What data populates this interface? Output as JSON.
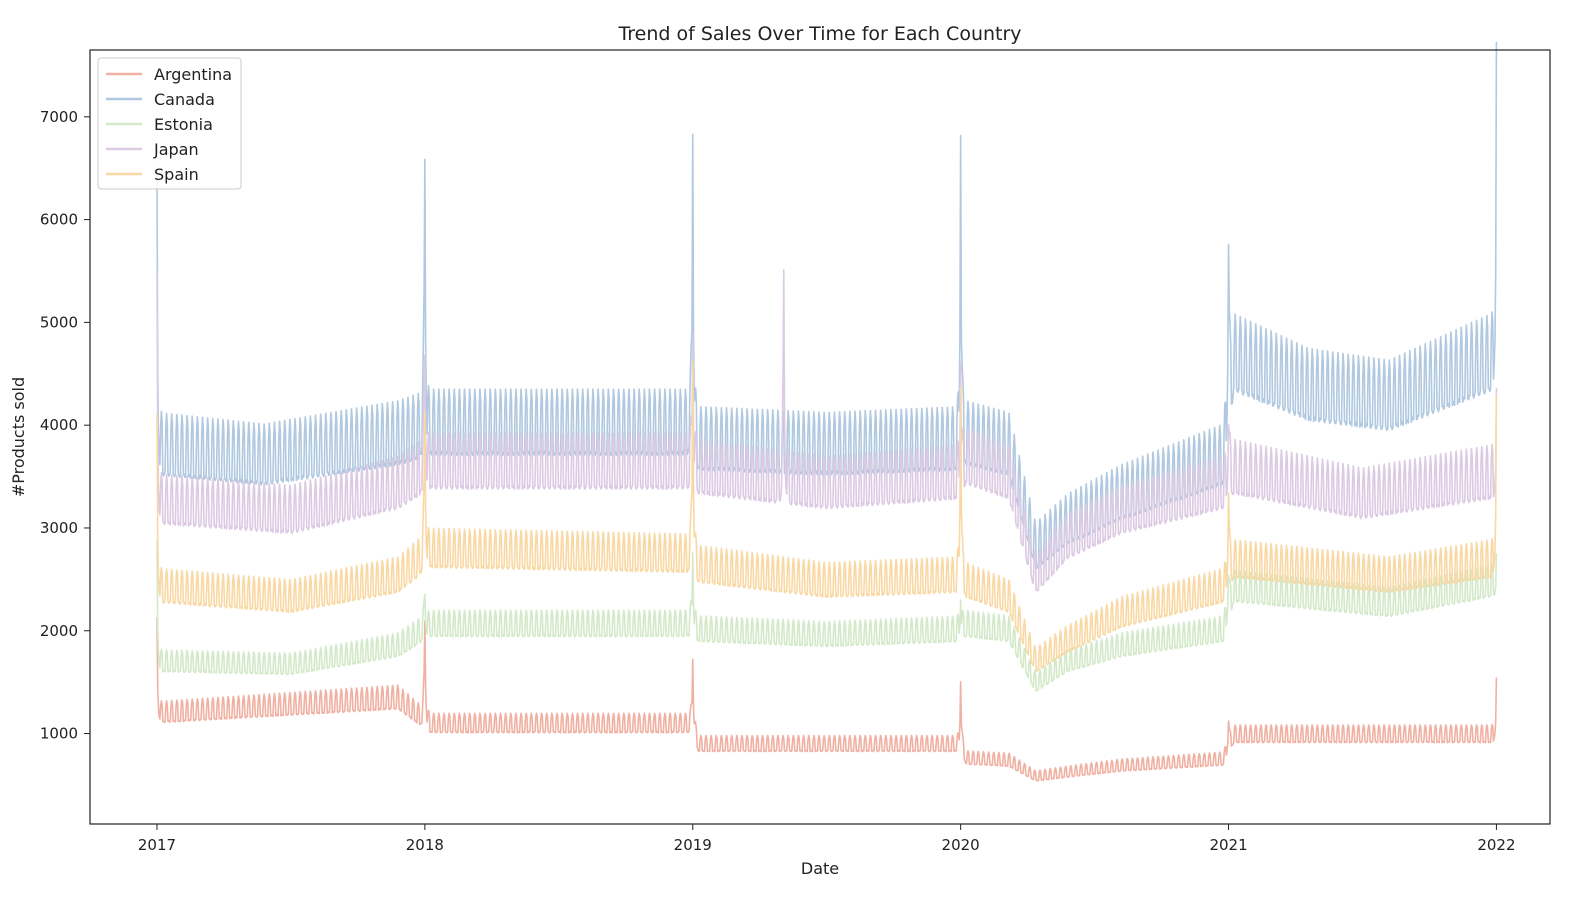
{
  "chart_data": {
    "type": "line",
    "title": "Trend of Sales Over Time for Each Country",
    "xlabel": "Date",
    "ylabel": "#Products sold",
    "xlim": [
      2016.75,
      2022.2
    ],
    "ylim": [
      120,
      7650
    ],
    "x_ticks": [
      2017,
      2018,
      2019,
      2020,
      2021,
      2022
    ],
    "x_tick_labels": [
      "2017",
      "2018",
      "2019",
      "2020",
      "2021",
      "2022"
    ],
    "y_ticks": [
      1000,
      2000,
      3000,
      4000,
      5000,
      6000,
      7000
    ],
    "y_tick_labels": [
      "1000",
      "2000",
      "3000",
      "4000",
      "5000",
      "6000",
      "7000"
    ],
    "grid": false,
    "legend_position": "top-left",
    "series": [
      {
        "name": "Argentina",
        "color": "#f0b1a3",
        "profile": [
          [
            2017.0,
            1150
          ],
          [
            2017.9,
            1290
          ],
          [
            2018.02,
            1050
          ],
          [
            2019.0,
            1050
          ],
          [
            2019.02,
            860
          ],
          [
            2020.0,
            860
          ],
          [
            2020.02,
            730
          ],
          [
            2020.18,
            710
          ],
          [
            2020.28,
            560
          ],
          [
            2020.4,
            600
          ],
          [
            2020.6,
            660
          ],
          [
            2020.98,
            720
          ],
          [
            2021.02,
            950
          ],
          [
            2021.98,
            950
          ]
        ],
        "amplitude": 0.14,
        "spikes": [
          [
            2017.0,
            2000
          ],
          [
            2018.0,
            2140
          ],
          [
            2019.0,
            1760
          ],
          [
            2020.0,
            1530
          ],
          [
            2021.0,
            1150
          ],
          [
            2022.0,
            1460
          ]
        ]
      },
      {
        "name": "Canada",
        "color": "#b0c8e0",
        "profile": [
          [
            2017.0,
            3650
          ],
          [
            2017.4,
            3550
          ],
          [
            2017.9,
            3750
          ],
          [
            2018.02,
            3850
          ],
          [
            2019.0,
            3850
          ],
          [
            2019.02,
            3700
          ],
          [
            2019.5,
            3650
          ],
          [
            2020.0,
            3700
          ],
          [
            2020.02,
            3750
          ],
          [
            2020.18,
            3650
          ],
          [
            2020.28,
            2700
          ],
          [
            2020.4,
            2950
          ],
          [
            2020.6,
            3200
          ],
          [
            2020.98,
            3550
          ],
          [
            2021.02,
            4500
          ],
          [
            2021.3,
            4200
          ],
          [
            2021.6,
            4100
          ],
          [
            2021.98,
            4500
          ]
        ],
        "amplitude": 0.13,
        "spikes": [
          [
            2017.0,
            6140
          ],
          [
            2018.0,
            6700
          ],
          [
            2019.0,
            6970
          ],
          [
            2020.0,
            6950
          ],
          [
            2021.0,
            5870
          ],
          [
            2022.0,
            7350
          ]
        ]
      },
      {
        "name": "Estonia",
        "color": "#d3e9c9",
        "profile": [
          [
            2017.0,
            1650
          ],
          [
            2017.5,
            1620
          ],
          [
            2017.9,
            1800
          ],
          [
            2018.02,
            2000
          ],
          [
            2019.0,
            2000
          ],
          [
            2019.02,
            1950
          ],
          [
            2019.5,
            1900
          ],
          [
            2020.0,
            1950
          ],
          [
            2020.02,
            2000
          ],
          [
            2020.18,
            1950
          ],
          [
            2020.28,
            1450
          ],
          [
            2020.4,
            1650
          ],
          [
            2020.6,
            1800
          ],
          [
            2020.98,
            1950
          ],
          [
            2021.02,
            2350
          ],
          [
            2021.6,
            2200
          ],
          [
            2021.98,
            2400
          ]
        ],
        "amplitude": 0.1,
        "spikes": [
          [
            2017.0,
            2750
          ],
          [
            2018.0,
            2400
          ],
          [
            2019.0,
            2800
          ],
          [
            2020.0,
            2350
          ],
          [
            2021.0,
            2600
          ],
          [
            2022.0,
            2600
          ]
        ]
      },
      {
        "name": "Japan",
        "color": "#dccae3",
        "profile": [
          [
            2017.0,
            3150
          ],
          [
            2017.5,
            3050
          ],
          [
            2017.9,
            3300
          ],
          [
            2018.02,
            3500
          ],
          [
            2019.0,
            3500
          ],
          [
            2019.02,
            3450
          ],
          [
            2019.5,
            3300
          ],
          [
            2020.0,
            3400
          ],
          [
            2020.02,
            3550
          ],
          [
            2020.18,
            3400
          ],
          [
            2020.28,
            2450
          ],
          [
            2020.4,
            2800
          ],
          [
            2020.6,
            3050
          ],
          [
            2020.98,
            3300
          ],
          [
            2021.02,
            3450
          ],
          [
            2021.5,
            3200
          ],
          [
            2021.98,
            3400
          ]
        ],
        "amplitude": 0.12,
        "spikes": [
          [
            2017.0,
            5200
          ],
          [
            2018.0,
            4800
          ],
          [
            2019.0,
            5000
          ],
          [
            2019.34,
            5350
          ],
          [
            2020.0,
            4700
          ],
          [
            2021.0,
            4100
          ],
          [
            2022.0,
            4100
          ]
        ]
      },
      {
        "name": "Spain",
        "color": "#f9d8a4",
        "profile": [
          [
            2017.0,
            2350
          ],
          [
            2017.5,
            2250
          ],
          [
            2017.9,
            2450
          ],
          [
            2018.02,
            2700
          ],
          [
            2019.0,
            2650
          ],
          [
            2019.02,
            2550
          ],
          [
            2019.5,
            2400
          ],
          [
            2020.0,
            2450
          ],
          [
            2020.02,
            2400
          ],
          [
            2020.18,
            2250
          ],
          [
            2020.28,
            1650
          ],
          [
            2020.4,
            1850
          ],
          [
            2020.6,
            2100
          ],
          [
            2020.98,
            2350
          ],
          [
            2021.02,
            2600
          ],
          [
            2021.6,
            2450
          ],
          [
            2021.98,
            2600
          ]
        ],
        "amplitude": 0.11,
        "spikes": [
          [
            2017.0,
            3900
          ],
          [
            2018.0,
            4200
          ],
          [
            2019.0,
            4700
          ],
          [
            2020.0,
            4450
          ],
          [
            2021.0,
            3400
          ],
          [
            2022.0,
            4120
          ]
        ]
      }
    ]
  }
}
